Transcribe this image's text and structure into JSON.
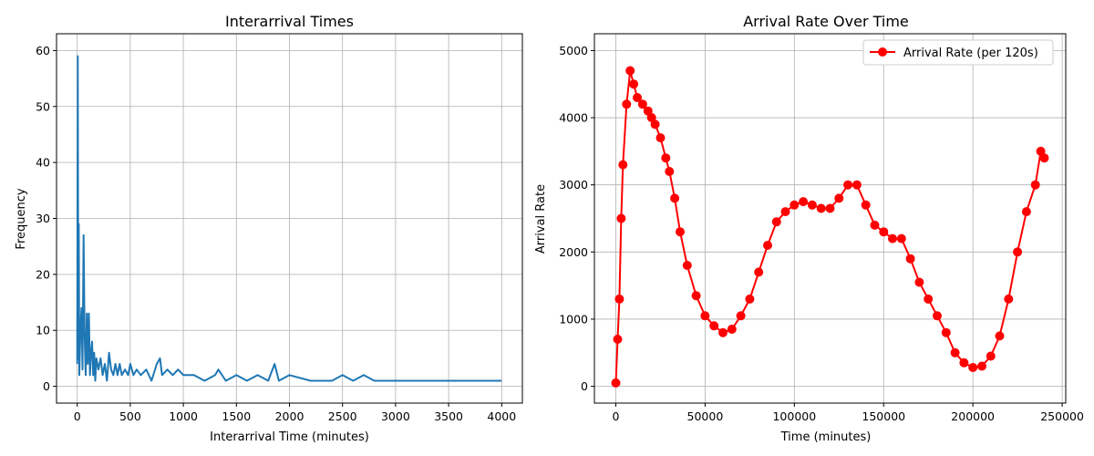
{
  "chart_data": [
    {
      "type": "line",
      "title": "Interarrival Times",
      "xlabel": "Interarrival Time (minutes)",
      "ylabel": "Frequency",
      "xlim": [
        -195,
        4195
      ],
      "ylim": [
        -3,
        63
      ],
      "xticks": [
        0,
        500,
        1000,
        1500,
        2000,
        2500,
        3000,
        3500,
        4000
      ],
      "yticks": [
        0,
        10,
        20,
        30,
        40,
        50,
        60
      ],
      "grid": true,
      "color": "#1f77b4",
      "series": [
        {
          "x": [
            0,
            5,
            10,
            15,
            20,
            30,
            40,
            50,
            60,
            70,
            80,
            90,
            100,
            110,
            120,
            130,
            140,
            150,
            160,
            170,
            180,
            200,
            220,
            240,
            260,
            280,
            300,
            320,
            340,
            360,
            380,
            400,
            420,
            450,
            480,
            500,
            530,
            560,
            600,
            650,
            700,
            750,
            780,
            800,
            850,
            900,
            950,
            1000,
            1100,
            1200,
            1300,
            1330,
            1400,
            1500,
            1600,
            1700,
            1800,
            1860,
            1900,
            2000,
            2200,
            2400,
            2500,
            2600,
            2700,
            2800,
            3000,
            3200,
            3400,
            3600,
            3800,
            4000
          ],
          "y": [
            4,
            59,
            5,
            29,
            2,
            10,
            14,
            3,
            27,
            9,
            2,
            13,
            4,
            13,
            2,
            6,
            8,
            2,
            6,
            1,
            5,
            3,
            5,
            2,
            4,
            1,
            6,
            3,
            2,
            4,
            2,
            4,
            2,
            3,
            2,
            4,
            2,
            3,
            2,
            3,
            1,
            4,
            5,
            2,
            3,
            2,
            3,
            2,
            2,
            1,
            2,
            3,
            1,
            2,
            1,
            2,
            1,
            4,
            1,
            2,
            1,
            1,
            2,
            1,
            2,
            1,
            1,
            1,
            1,
            1,
            1,
            1
          ]
        }
      ]
    },
    {
      "type": "line",
      "title": "Arrival Rate Over Time",
      "xlabel": "Time (minutes)",
      "ylabel": "Arrival Rate",
      "xlim": [
        -12000,
        252000
      ],
      "ylim": [
        -250,
        5250
      ],
      "xticks": [
        0,
        50000,
        100000,
        150000,
        200000,
        250000
      ],
      "yticks": [
        0,
        1000,
        2000,
        3000,
        4000,
        5000
      ],
      "grid": true,
      "color": "#ff0000",
      "marker": "circle",
      "legend": "top-right",
      "series": [
        {
          "name": "Arrival Rate (per 120s)",
          "x": [
            0,
            1000,
            2000,
            3000,
            4000,
            6000,
            8000,
            10000,
            12000,
            15000,
            18000,
            20000,
            22000,
            25000,
            28000,
            30000,
            33000,
            36000,
            40000,
            45000,
            50000,
            55000,
            60000,
            65000,
            70000,
            75000,
            80000,
            85000,
            90000,
            95000,
            100000,
            105000,
            110000,
            115000,
            120000,
            125000,
            130000,
            135000,
            140000,
            145000,
            150000,
            155000,
            160000,
            165000,
            170000,
            175000,
            180000,
            185000,
            190000,
            195000,
            200000,
            205000,
            210000,
            215000,
            220000,
            225000,
            230000,
            235000,
            238000,
            240000
          ],
          "y": [
            50,
            700,
            1300,
            2500,
            3300,
            4200,
            4700,
            4500,
            4300,
            4200,
            4100,
            4000,
            3900,
            3700,
            3400,
            3200,
            2800,
            2300,
            1800,
            1350,
            1050,
            900,
            800,
            850,
            1050,
            1300,
            1700,
            2100,
            2450,
            2600,
            2700,
            2750,
            2700,
            2650,
            2650,
            2800,
            3000,
            3000,
            2700,
            2400,
            2300,
            2200,
            2200,
            1900,
            1550,
            1300,
            1050,
            800,
            500,
            350,
            280,
            300,
            450,
            750,
            1300,
            2000,
            2600,
            3000,
            3500,
            3400
          ]
        }
      ]
    }
  ]
}
